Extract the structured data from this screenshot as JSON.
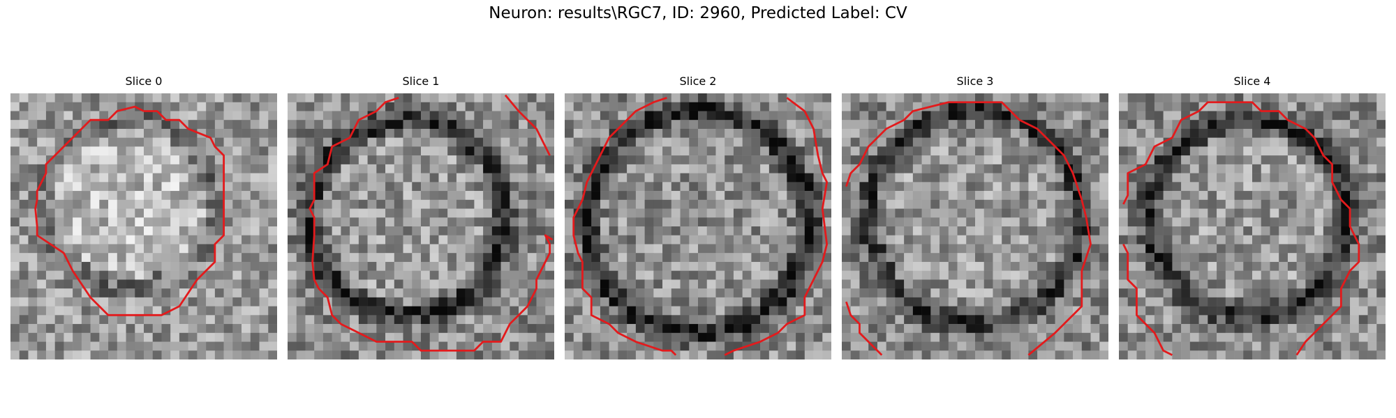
{
  "figure": {
    "title": "Neuron: results\\RGC7, ID: 2960, Predicted Label: CV"
  },
  "panels": [
    {
      "title": "Slice 0",
      "image": "noisy grayscale microscopy patch with bright round cell body"
    },
    {
      "title": "Slice 1",
      "image": "noisy grayscale microscopy patch with dark ring around cell"
    },
    {
      "title": "Slice 2",
      "image": "noisy grayscale microscopy patch with dark ring around cell"
    },
    {
      "title": "Slice 3",
      "image": "noisy grayscale microscopy patch with dark ring around cell"
    },
    {
      "title": "Slice 4",
      "image": "noisy grayscale microscopy patch with dark ring around cell"
    }
  ],
  "style": {
    "contour_color": "#e31a1c",
    "colormap": "gray"
  }
}
